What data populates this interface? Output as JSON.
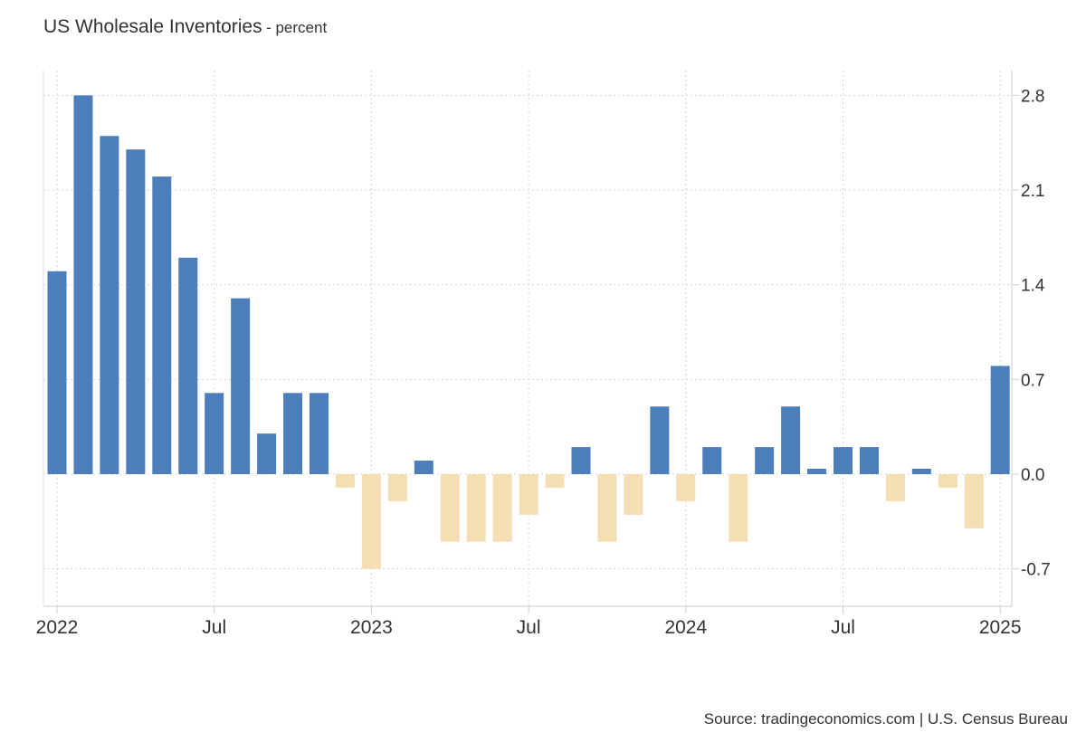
{
  "header": {
    "title": "US Wholesale Inventories",
    "subtitle": "- percent"
  },
  "footer": {
    "source": "Source: tradingeconomics.com | U.S. Census Bureau"
  },
  "chart_data": {
    "type": "bar",
    "title": "US Wholesale Inventories",
    "subtitle": "- percent",
    "x_tick_labels": [
      "2022",
      "Jul",
      "2023",
      "Jul",
      "2024",
      "Jul",
      "2025"
    ],
    "y_tick_labels": [
      "2.8",
      "2.1",
      "1.4",
      "0.7",
      "0.0",
      "-0.7"
    ],
    "ylim": [
      -0.98,
      2.98
    ],
    "grid": true,
    "colors": {
      "positive": "#4d7ebc",
      "negative": "#f5deb3"
    },
    "categories": [
      "Jan 2022",
      "Feb 2022",
      "Mar 2022",
      "Apr 2022",
      "May 2022",
      "Jun 2022",
      "Jul 2022",
      "Aug 2022",
      "Sep 2022",
      "Oct 2022",
      "Nov 2022",
      "Dec 2022",
      "Jan 2023",
      "Feb 2023",
      "Mar 2023",
      "Apr 2023",
      "May 2023",
      "Jun 2023",
      "Jul 2023",
      "Aug 2023",
      "Sep 2023",
      "Oct 2023",
      "Nov 2023",
      "Dec 2023",
      "Jan 2024",
      "Feb 2024",
      "Mar 2024",
      "Apr 2024",
      "May 2024",
      "Jun 2024",
      "Jul 2024",
      "Aug 2024",
      "Sep 2024",
      "Oct 2024",
      "Nov 2024",
      "Dec 2024",
      "Jan 2025"
    ],
    "values": [
      1.5,
      2.8,
      2.5,
      2.4,
      2.2,
      1.6,
      0.6,
      1.3,
      0.3,
      0.6,
      0.6,
      -0.1,
      -0.7,
      -0.2,
      0.1,
      -0.5,
      -0.5,
      -0.5,
      -0.3,
      -0.1,
      0.2,
      -0.5,
      -0.3,
      0.5,
      -0.2,
      0.2,
      -0.5,
      0.2,
      0.5,
      0.04,
      0.2,
      0.2,
      -0.2,
      0.04,
      -0.1,
      -0.4,
      0.8
    ]
  }
}
